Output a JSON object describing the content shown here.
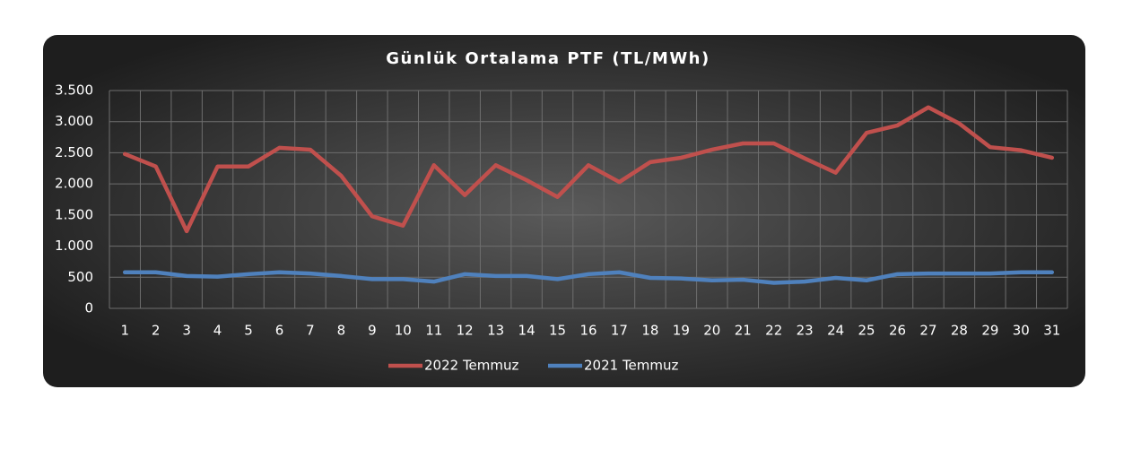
{
  "chart_data": {
    "type": "line",
    "title": "Günlük Ortalama PTF (TL/MWh)",
    "categories": [
      "1",
      "2",
      "3",
      "4",
      "5",
      "6",
      "7",
      "8",
      "9",
      "10",
      "11",
      "12",
      "13",
      "14",
      "15",
      "16",
      "17",
      "18",
      "19",
      "20",
      "21",
      "22",
      "23",
      "24",
      "25",
      "26",
      "27",
      "28",
      "29",
      "30",
      "31"
    ],
    "series": [
      {
        "name": "2022 Temmuz",
        "color": "#c0504d",
        "values": [
          2480,
          2280,
          1240,
          2280,
          2280,
          2580,
          2550,
          2130,
          1480,
          1330,
          2300,
          1820,
          2300,
          2060,
          1790,
          2300,
          2030,
          2350,
          2420,
          2550,
          2650,
          2650,
          2410,
          2180,
          2820,
          2940,
          3230,
          2970,
          2590,
          2540,
          2420
        ]
      },
      {
        "name": "2021 Temmuz",
        "color": "#4f81bd",
        "values": [
          580,
          580,
          520,
          510,
          550,
          580,
          560,
          520,
          470,
          470,
          430,
          550,
          520,
          520,
          470,
          550,
          580,
          490,
          480,
          450,
          460,
          410,
          430,
          490,
          450,
          550,
          560,
          560,
          560,
          580,
          580
        ]
      }
    ],
    "ylim": [
      0,
      3500
    ],
    "yticks": [
      0,
      500,
      {
        "value": 1000,
        "label": "1.000"
      },
      {
        "value": 1500,
        "label": "1.500"
      },
      {
        "value": 2000,
        "label": "2.000"
      },
      {
        "value": 2500,
        "label": "2.500"
      },
      {
        "value": 3000,
        "label": "3.000"
      },
      {
        "value": 3500,
        "label": "3.500"
      }
    ],
    "grid": true,
    "legend": "bottom"
  }
}
